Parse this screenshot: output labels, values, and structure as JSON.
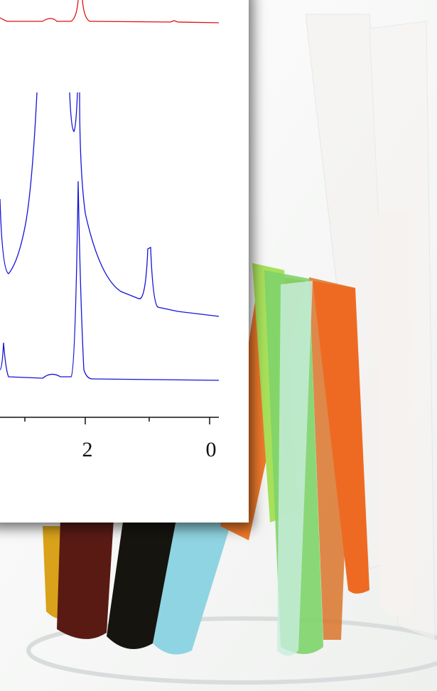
{
  "spectrum": {
    "x_tick_labels": [
      "2",
      "0"
    ]
  }
}
